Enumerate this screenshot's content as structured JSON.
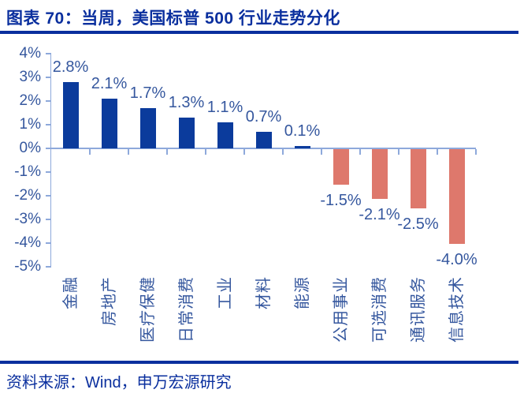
{
  "header": {
    "title": "图表 70：当周，美国标普 500 行业走势分化"
  },
  "footer": {
    "source": "资料来源：Wind，申万宏源研究"
  },
  "colors": {
    "navy_accent": "#0A2F9E",
    "positive_bar": "#0B3B9C",
    "negative_bar": "#DE786C",
    "axis_line": "#8EA9DB",
    "tick_text": "#35579E"
  },
  "chart_data": {
    "type": "bar",
    "title": "当周，美国标普 500 行业走势分化",
    "categories": [
      "金融",
      "房地产",
      "医疗保健",
      "日常消费",
      "工业",
      "材料",
      "能源",
      "公用事业",
      "可选消费",
      "通讯服务",
      "信息技术"
    ],
    "values": [
      2.8,
      2.1,
      1.7,
      1.3,
      1.1,
      0.7,
      0.1,
      -1.5,
      -2.1,
      -2.5,
      -4.0
    ],
    "data_labels": [
      "2.8%",
      "2.1%",
      "1.7%",
      "1.3%",
      "1.1%",
      "0.7%",
      "0.1%",
      "-1.5%",
      "-2.1%",
      "-2.5%",
      "-4.0%"
    ],
    "xlabel": "",
    "ylabel": "",
    "y_ticks": [
      {
        "value": 4,
        "label": "4%"
      },
      {
        "value": 3,
        "label": "3%"
      },
      {
        "value": 2,
        "label": "2%"
      },
      {
        "value": 1,
        "label": "1%"
      },
      {
        "value": 0,
        "label": "0%"
      },
      {
        "value": -1,
        "label": "-1%"
      },
      {
        "value": -2,
        "label": "-2%"
      },
      {
        "value": -3,
        "label": "-3%"
      },
      {
        "value": -4,
        "label": "-4%"
      },
      {
        "value": -5,
        "label": "-5%"
      }
    ],
    "ylim": [
      -5,
      4
    ],
    "grid": false,
    "legend": "none",
    "bar_colors": {
      "positive": "#0B3B9C",
      "negative": "#DE786C"
    }
  }
}
